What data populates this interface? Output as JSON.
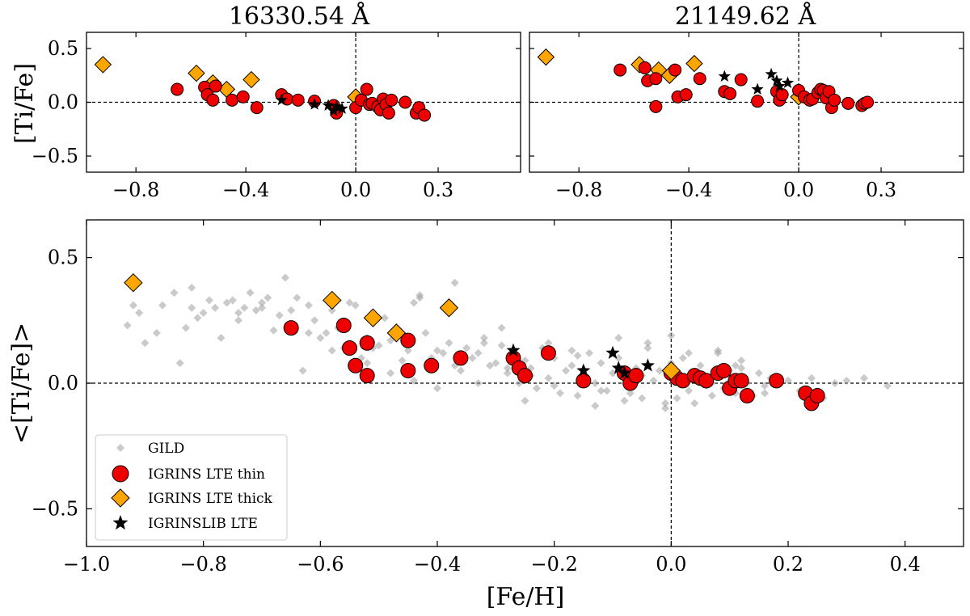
{
  "chart_data": [
    {
      "type": "scatter",
      "panel": "top-left",
      "title": "16330.54 Å",
      "xlabel": "",
      "ylabel": "[Ti/Fe]",
      "xlim": [
        -1.0,
        0.6
      ],
      "ylim": [
        -0.65,
        0.65
      ],
      "xticks": [
        -0.8,
        -0.4,
        0.0,
        0.3
      ],
      "xticklabels": [
        "−0.8",
        "−0.4",
        "0.0",
        "0.3"
      ],
      "yticks": [
        0.5,
        0.0,
        -0.5
      ],
      "yticklabels": [
        "0.5",
        "0.0",
        "−0.5"
      ],
      "series": [
        {
          "name": "IGRINS LTE thick",
          "marker": "diamond",
          "color": "#ffa500",
          "x": [
            -0.92,
            -0.58,
            -0.52,
            -0.47,
            -0.38,
            0.0
          ],
          "y": [
            0.35,
            0.27,
            0.18,
            0.12,
            0.21,
            0.05
          ]
        },
        {
          "name": "IGRINS LTE thin",
          "marker": "circle",
          "color": "#ee0000",
          "x": [
            -0.65,
            -0.55,
            -0.54,
            -0.52,
            -0.51,
            -0.45,
            -0.41,
            -0.36,
            -0.27,
            -0.25,
            -0.21,
            -0.15,
            -0.08,
            -0.07,
            0.0,
            0.02,
            0.04,
            0.05,
            0.06,
            0.08,
            0.09,
            0.1,
            0.11,
            0.12,
            0.13,
            0.18,
            0.22,
            0.23,
            0.25
          ],
          "y": [
            0.12,
            0.14,
            0.07,
            0.02,
            0.15,
            0.02,
            0.05,
            -0.05,
            0.07,
            0.03,
            0.02,
            0.01,
            -0.03,
            -0.1,
            -0.05,
            0.02,
            0.12,
            -0.02,
            -0.01,
            -0.04,
            -0.07,
            0.03,
            -0.02,
            -0.1,
            0.02,
            0.0,
            -0.1,
            -0.05,
            -0.12
          ]
        },
        {
          "name": "IGRINSLIB LTE",
          "marker": "star",
          "color": "#000000",
          "x": [
            -0.27,
            -0.15,
            -0.1,
            -0.08,
            -0.07,
            -0.05
          ],
          "y": [
            0.02,
            -0.02,
            -0.03,
            -0.08,
            -0.04,
            -0.06
          ]
        }
      ]
    },
    {
      "type": "scatter",
      "panel": "top-right",
      "title": "21149.62 Å",
      "xlabel": "",
      "ylabel": "",
      "xlim": [
        -1.0,
        0.6
      ],
      "ylim": [
        -0.65,
        0.65
      ],
      "xticks": [
        -0.8,
        -0.4,
        0.0,
        0.3
      ],
      "xticklabels": [
        "−0.8",
        "−0.4",
        "0.0",
        "0.3"
      ],
      "yticks": [
        0.5,
        0.0,
        -0.5
      ],
      "series": [
        {
          "name": "IGRINS LTE thick",
          "marker": "diamond",
          "color": "#ffa500",
          "x": [
            -0.92,
            -0.58,
            -0.51,
            -0.47,
            -0.38,
            0.0
          ],
          "y": [
            0.42,
            0.35,
            0.3,
            0.25,
            0.36,
            0.05
          ]
        },
        {
          "name": "IGRINS LTE thin",
          "marker": "circle",
          "color": "#ee0000",
          "x": [
            -0.65,
            -0.56,
            -0.55,
            -0.52,
            -0.52,
            -0.45,
            -0.44,
            -0.41,
            -0.36,
            -0.27,
            -0.25,
            -0.21,
            -0.15,
            -0.08,
            -0.07,
            -0.06,
            0.0,
            0.02,
            0.04,
            0.05,
            0.07,
            0.08,
            0.09,
            0.1,
            0.11,
            0.12,
            0.13,
            0.18,
            0.23,
            0.24,
            0.25
          ],
          "y": [
            0.3,
            0.32,
            0.2,
            0.22,
            -0.04,
            0.3,
            0.05,
            0.07,
            0.22,
            0.1,
            0.08,
            0.21,
            0.01,
            0.1,
            0.02,
            0.07,
            0.11,
            0.05,
            0.02,
            0.03,
            0.09,
            0.12,
            0.11,
            0.04,
            0.1,
            -0.05,
            0.02,
            -0.01,
            -0.03,
            -0.01,
            0.0
          ]
        },
        {
          "name": "IGRINSLIB LTE",
          "marker": "star",
          "color": "#000000",
          "x": [
            -0.27,
            -0.15,
            -0.1,
            -0.08,
            -0.07,
            -0.04
          ],
          "y": [
            0.24,
            0.12,
            0.26,
            0.2,
            0.15,
            0.18
          ]
        }
      ]
    },
    {
      "type": "scatter",
      "panel": "bottom",
      "title": "",
      "xlabel": "[Fe/H]",
      "ylabel": "<[Ti/Fe]>",
      "xlim": [
        -1.0,
        0.5
      ],
      "ylim": [
        -0.65,
        0.65
      ],
      "xticks": [
        -1.0,
        -0.8,
        -0.6,
        -0.4,
        -0.2,
        0.0,
        0.2,
        0.4
      ],
      "xticklabels": [
        "−1.0",
        "−0.8",
        "−0.6",
        "−0.4",
        "−0.2",
        "0.0",
        "0.2",
        "0.4"
      ],
      "yticks": [
        0.5,
        0.0,
        -0.5
      ],
      "yticklabels": [
        "0.5",
        "0.0",
        "−0.5"
      ],
      "legend": {
        "position": "lower-left",
        "entries": [
          "GILD",
          "IGRINS LTE thin",
          "IGRINS LTE thick",
          "IGRINSLIB LTE"
        ]
      },
      "series": [
        {
          "name": "GILD",
          "marker": "diamond-small",
          "color": "#9e9e9e",
          "x": [
            -0.93,
            -0.92,
            -0.91,
            -0.9,
            -0.88,
            -0.87,
            -0.85,
            -0.84,
            -0.83,
            -0.82,
            -0.82,
            -0.81,
            -0.8,
            -0.79,
            -0.78,
            -0.77,
            -0.76,
            -0.75,
            -0.74,
            -0.73,
            -0.72,
            -0.71,
            -0.7,
            -0.69,
            -0.68,
            -0.67,
            -0.66,
            -0.65,
            -0.64,
            -0.63,
            -0.62,
            -0.61,
            -0.6,
            -0.59,
            -0.58,
            -0.57,
            -0.56,
            -0.55,
            -0.54,
            -0.53,
            -0.52,
            -0.51,
            -0.5,
            -0.49,
            -0.48,
            -0.47,
            -0.46,
            -0.45,
            -0.44,
            -0.43,
            -0.42,
            -0.41,
            -0.4,
            -0.39,
            -0.38,
            -0.37,
            -0.36,
            -0.35,
            -0.34,
            -0.33,
            -0.32,
            -0.31,
            -0.3,
            -0.29,
            -0.28,
            -0.27,
            -0.26,
            -0.25,
            -0.24,
            -0.23,
            -0.22,
            -0.21,
            -0.2,
            -0.19,
            -0.18,
            -0.17,
            -0.16,
            -0.15,
            -0.14,
            -0.13,
            -0.12,
            -0.11,
            -0.1,
            -0.09,
            -0.08,
            -0.07,
            -0.06,
            -0.05,
            -0.04,
            -0.03,
            -0.02,
            -0.01,
            0.0,
            0.01,
            0.02,
            0.03,
            0.04,
            0.05,
            0.06,
            0.07,
            0.08,
            0.09,
            0.1,
            0.11,
            0.12,
            0.13,
            0.14,
            0.15,
            0.16,
            0.17,
            0.18,
            0.2,
            0.22,
            0.24,
            0.26,
            0.28,
            0.3,
            0.33,
            0.37,
            -0.74,
            -0.7,
            -0.62,
            -0.58,
            -0.52,
            -0.48,
            -0.44,
            -0.4,
            -0.36,
            -0.32,
            -0.28,
            -0.24,
            -0.2,
            -0.16,
            -0.12,
            -0.08,
            -0.04,
            0.0,
            0.04,
            0.08,
            0.12,
            0.16,
            -0.43,
            -0.37,
            -0.33,
            -0.29,
            -0.25,
            -0.21,
            -0.17,
            -0.13,
            -0.09,
            -0.05,
            -0.01,
            0.03,
            0.07,
            0.11
          ],
          "y": [
            0.23,
            0.31,
            0.28,
            0.16,
            0.2,
            0.31,
            0.36,
            0.08,
            0.22,
            0.38,
            0.3,
            0.26,
            0.28,
            0.33,
            0.3,
            0.18,
            0.32,
            0.33,
            0.28,
            0.3,
            0.36,
            0.29,
            0.3,
            0.34,
            0.21,
            0.27,
            0.42,
            0.29,
            0.34,
            0.05,
            0.31,
            0.25,
            0.18,
            0.2,
            0.29,
            0.22,
            0.14,
            0.32,
            0.31,
            0.1,
            0.18,
            0.14,
            0.15,
            0.26,
            0.17,
            0.21,
            0.09,
            0.13,
            0.32,
            0.34,
            0.2,
            0.1,
            0.13,
            0.12,
            0.16,
            0.07,
            0.05,
            0.14,
            0.1,
            0.12,
            0.18,
            0.07,
            0.08,
            0.15,
            0.04,
            0.12,
            0.0,
            0.09,
            0.06,
            -0.02,
            0.14,
            0.02,
            0.1,
            -0.04,
            0.05,
            0.13,
            -0.05,
            0.02,
            0.12,
            0.0,
            0.08,
            -0.03,
            0.04,
            0.1,
            0.02,
            -0.04,
            0.06,
            -0.06,
            0.14,
            0.01,
            0.05,
            -0.08,
            0.08,
            -0.06,
            0.1,
            -0.03,
            0.02,
            0.07,
            -0.01,
            0.0,
            0.12,
            -0.02,
            0.05,
            -0.04,
            0.06,
            0.0,
            -0.05,
            0.04,
            -0.01,
            0.02,
            0.0,
            0.01,
            -0.03,
            0.02,
            -0.06,
            0.0,
            0.01,
            0.02,
            -0.01,
            0.25,
            0.32,
            0.2,
            0.13,
            0.08,
            0.04,
            0.01,
            -0.02,
            0.09,
            0.16,
            0.06,
            0.03,
            -0.01,
            0.11,
            -0.03,
            -0.07,
            0.16,
            0.19,
            -0.08,
            0.13,
            0.09,
            -0.04,
            0.35,
            0.4,
            0.0,
            0.22,
            -0.07,
            0.16,
            0.07,
            -0.09,
            0.18,
            0.03,
            -0.1,
            0.12,
            -0.05,
            0.07
          ]
        },
        {
          "name": "IGRINS LTE thin",
          "marker": "circle",
          "color": "#ee0000",
          "x": [
            -0.65,
            -0.56,
            -0.55,
            -0.54,
            -0.52,
            -0.52,
            -0.45,
            -0.45,
            -0.41,
            -0.36,
            -0.27,
            -0.26,
            -0.25,
            -0.21,
            -0.15,
            -0.08,
            -0.07,
            -0.06,
            0.0,
            0.01,
            0.02,
            0.04,
            0.05,
            0.06,
            0.08,
            0.09,
            0.1,
            0.11,
            0.12,
            0.13,
            0.18,
            0.23,
            0.24,
            0.25
          ],
          "y": [
            0.22,
            0.23,
            0.14,
            0.07,
            0.16,
            0.03,
            0.17,
            0.05,
            0.07,
            0.1,
            0.1,
            0.06,
            0.03,
            0.12,
            0.01,
            0.04,
            0.0,
            0.03,
            0.04,
            0.02,
            0.01,
            0.03,
            0.02,
            0.01,
            0.04,
            0.05,
            -0.02,
            0.01,
            0.01,
            -0.05,
            0.01,
            -0.04,
            -0.08,
            -0.05
          ]
        },
        {
          "name": "IGRINS LTE thick",
          "marker": "diamond",
          "color": "#ffa500",
          "x": [
            -0.92,
            -0.58,
            -0.51,
            -0.47,
            -0.38,
            0.0
          ],
          "y": [
            0.4,
            0.33,
            0.26,
            0.2,
            0.3,
            0.05
          ]
        },
        {
          "name": "IGRINSLIB LTE",
          "marker": "star",
          "color": "#000000",
          "x": [
            -0.27,
            -0.15,
            -0.1,
            -0.09,
            -0.08,
            -0.04
          ],
          "y": [
            0.13,
            0.05,
            0.12,
            0.06,
            0.04,
            0.07
          ]
        }
      ]
    }
  ]
}
